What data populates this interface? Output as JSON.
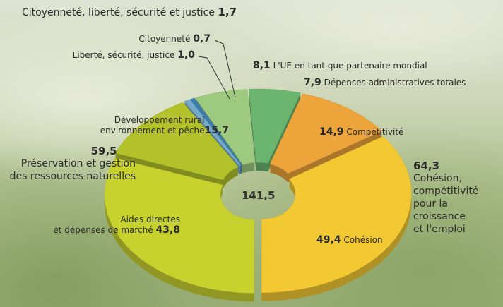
{
  "chart_data": {
    "type": "donut",
    "categories": [
      "Cohésion",
      "Compétitivité",
      "Dépenses administratives totales",
      "L'UE en tant que partenaire mondial",
      "Citoyenneté",
      "Liberté, sécurité, justice",
      "Développement rural\nenvironnement et pêche",
      "Aides directes\net dépenses de marché"
    ],
    "values": [
      49.4,
      14.9,
      7.9,
      8.1,
      0.7,
      1.0,
      15.7,
      43.8
    ],
    "value_labels": [
      "49,4",
      "14,9",
      "7,9",
      "8,1",
      "0,7",
      "1,0",
      "15,7",
      "43,8"
    ],
    "colors": [
      "#f3c933",
      "#eca43b",
      "#6cb56f",
      "#9dca7e",
      "#3a7cab",
      "#74a9c9",
      "#b3c22b",
      "#c8d22f"
    ],
    "groups": [
      {
        "name": "Cohésion,\ncompétitivité\npour la croissance\net l'emploi",
        "value": 64.3,
        "value_label": "64,3"
      },
      {
        "name": "Préservation et gestion\ndes ressources naturelles",
        "value": 59.5,
        "value_label": "59,5"
      },
      {
        "name": "Citoyenneté, liberté, sécurité et justice",
        "value": 1.7,
        "value_label": "1,7"
      }
    ],
    "total": {
      "value": 141.5,
      "label": "141,5"
    }
  }
}
